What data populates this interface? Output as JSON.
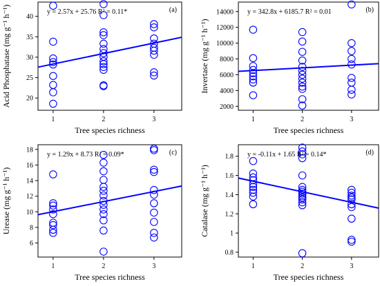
{
  "chart_data": [
    {
      "type": "scatter",
      "panel_label": "(a)",
      "equation": "y = 2.57x + 25.76 R² = 0.11*",
      "xlabel": "Tree species richness",
      "ylabel": "Acid Phosphatase (mg g⁻¹ h⁻¹)",
      "xlim": [
        0.7,
        3.55
      ],
      "ylim": [
        17,
        43.5
      ],
      "x_ticks": [
        1,
        2,
        3
      ],
      "y_ticks": [
        20,
        25,
        30,
        35,
        40
      ],
      "fit": {
        "slope": 2.57,
        "intercept": 25.76
      },
      "points": [
        [
          1,
          42.6
        ],
        [
          1,
          33.8
        ],
        [
          1,
          29.7
        ],
        [
          1,
          28.8
        ],
        [
          1,
          28.2
        ],
        [
          1,
          25.4
        ],
        [
          1,
          23.2
        ],
        [
          1,
          21.4
        ],
        [
          1,
          18.6
        ],
        [
          2,
          43
        ],
        [
          2,
          40.3
        ],
        [
          2,
          36.1
        ],
        [
          2,
          35.4
        ],
        [
          2,
          33.3
        ],
        [
          2,
          32
        ],
        [
          2,
          31
        ],
        [
          2,
          30.1
        ],
        [
          2,
          29
        ],
        [
          2,
          28.3
        ],
        [
          2,
          27.6
        ],
        [
          2,
          26.9
        ],
        [
          2,
          23.1
        ],
        [
          2,
          22.9
        ],
        [
          3,
          38.1
        ],
        [
          3,
          37.3
        ],
        [
          3,
          34.6
        ],
        [
          3,
          33.3
        ],
        [
          3,
          32.3
        ],
        [
          3,
          31.6
        ],
        [
          3,
          30.6
        ],
        [
          3,
          26.3
        ],
        [
          3,
          25.5
        ]
      ]
    },
    {
      "type": "scatter",
      "panel_label": "(b)",
      "equation": "y = 342.8x + 6185.7 R² = 0.01",
      "xlabel": "Tree species richness",
      "ylabel": "Invertase (mg g⁻¹ h⁻¹)",
      "xlim": [
        0.7,
        3.55
      ],
      "ylim": [
        1500,
        15200
      ],
      "x_ticks": [
        1,
        2,
        3
      ],
      "y_ticks": [
        2000,
        4000,
        6000,
        8000,
        10000,
        12000,
        14000
      ],
      "fit": {
        "slope": 342.8,
        "intercept": 6185.7
      },
      "points": [
        [
          1,
          11700
        ],
        [
          1,
          8100
        ],
        [
          1,
          7100
        ],
        [
          1,
          6600
        ],
        [
          1,
          6200
        ],
        [
          1,
          5800
        ],
        [
          1,
          5400
        ],
        [
          1,
          5000
        ],
        [
          1,
          3400
        ],
        [
          2,
          11400
        ],
        [
          2,
          10200
        ],
        [
          2,
          8900
        ],
        [
          2,
          7800
        ],
        [
          2,
          7000
        ],
        [
          2,
          6500
        ],
        [
          2,
          6000
        ],
        [
          2,
          5500
        ],
        [
          2,
          5000
        ],
        [
          2,
          4500
        ],
        [
          2,
          4200
        ],
        [
          2,
          2900
        ],
        [
          2,
          2100
        ],
        [
          3,
          14900
        ],
        [
          3,
          10000
        ],
        [
          3,
          9000
        ],
        [
          3,
          8000
        ],
        [
          3,
          7300
        ],
        [
          3,
          5600
        ],
        [
          3,
          5000
        ],
        [
          3,
          4100
        ],
        [
          3,
          3500
        ]
      ]
    },
    {
      "type": "scatter",
      "panel_label": "(c)",
      "equation": "y = 1.29x + 8.73 R² = 0.09*",
      "xlabel": "Tree species richness",
      "ylabel": "Urease (mg g⁻¹ h⁻¹)",
      "xlim": [
        0.7,
        3.55
      ],
      "ylim": [
        4.2,
        18.6
      ],
      "x_ticks": [
        1,
        2,
        3
      ],
      "y_ticks": [
        6,
        8,
        10,
        12,
        14,
        16,
        18
      ],
      "fit": {
        "slope": 1.29,
        "intercept": 8.73
      },
      "points": [
        [
          1,
          14.8
        ],
        [
          1,
          11.1
        ],
        [
          1,
          10.8
        ],
        [
          1,
          10.3
        ],
        [
          1,
          9.7
        ],
        [
          1,
          8.6
        ],
        [
          1,
          8.3
        ],
        [
          1,
          7.7
        ],
        [
          1,
          7.3
        ],
        [
          2,
          17.3
        ],
        [
          2,
          16.3
        ],
        [
          2,
          15.2
        ],
        [
          2,
          14.1
        ],
        [
          2,
          13.2
        ],
        [
          2,
          12.7
        ],
        [
          2,
          12.1
        ],
        [
          2,
          11.4
        ],
        [
          2,
          10.9
        ],
        [
          2,
          10.3
        ],
        [
          2,
          9.7
        ],
        [
          2,
          8.9
        ],
        [
          2,
          7.6
        ],
        [
          2,
          4.9
        ],
        [
          3,
          18.1
        ],
        [
          3,
          17.9
        ],
        [
          3,
          15.4
        ],
        [
          3,
          15.1
        ],
        [
          3,
          12.8
        ],
        [
          3,
          12.2
        ],
        [
          3,
          11.1
        ],
        [
          3,
          9.9
        ],
        [
          3,
          8.7
        ],
        [
          3,
          7.3
        ],
        [
          3,
          6.7
        ]
      ]
    },
    {
      "type": "scatter",
      "panel_label": "(d)",
      "equation": "y = -0.11x + 1.65 R² = 0.14*",
      "xlabel": "Tree species richness",
      "ylabel": "Catalase (mg g⁻¹ h⁻¹)",
      "xlim": [
        0.7,
        3.55
      ],
      "ylim": [
        0.75,
        1.92
      ],
      "x_ticks": [
        1,
        2,
        3
      ],
      "y_ticks": [
        0.8,
        1.0,
        1.2,
        1.4,
        1.6,
        1.8
      ],
      "fit": {
        "slope": -0.11,
        "intercept": 1.65
      },
      "points": [
        [
          1,
          1.75
        ],
        [
          1,
          1.62
        ],
        [
          1,
          1.58
        ],
        [
          1,
          1.55
        ],
        [
          1,
          1.51
        ],
        [
          1,
          1.48
        ],
        [
          1,
          1.45
        ],
        [
          1,
          1.42
        ],
        [
          1,
          1.38
        ],
        [
          1,
          1.3
        ],
        [
          2,
          1.89
        ],
        [
          2,
          1.85
        ],
        [
          2,
          1.82
        ],
        [
          2,
          1.78
        ],
        [
          2,
          1.6
        ],
        [
          2,
          1.48
        ],
        [
          2,
          1.45
        ],
        [
          2,
          1.43
        ],
        [
          2,
          1.41
        ],
        [
          2,
          1.39
        ],
        [
          2,
          1.37
        ],
        [
          2,
          1.35
        ],
        [
          2,
          1.32
        ],
        [
          2,
          1.29
        ],
        [
          2,
          0.79
        ],
        [
          3,
          1.45
        ],
        [
          3,
          1.42
        ],
        [
          3,
          1.39
        ],
        [
          3,
          1.37
        ],
        [
          3,
          1.35
        ],
        [
          3,
          1.3
        ],
        [
          3,
          1.27
        ],
        [
          3,
          1.15
        ],
        [
          3,
          0.93
        ],
        [
          3,
          0.91
        ]
      ]
    }
  ]
}
